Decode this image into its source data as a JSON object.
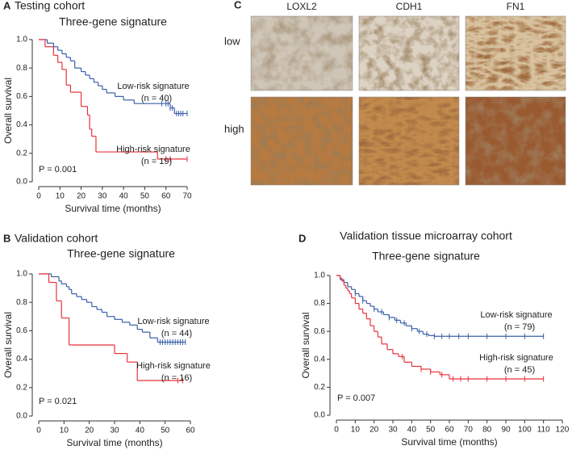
{
  "chart_data": [
    {
      "type": "km",
      "panel": "A",
      "title": "Testing cohort",
      "subtitle": "Three-gene signature",
      "xlabel": "Survival time (months)",
      "ylabel": "Overall survival",
      "p_text": "P = 0.001",
      "xlim": [
        0,
        70
      ],
      "xticks": [
        0,
        10,
        20,
        30,
        40,
        50,
        60,
        70
      ],
      "ylim": [
        0,
        1
      ],
      "yticks": [
        {
          "value": 0,
          "label": "0.0"
        },
        0.2,
        0.4,
        0.6,
        0.8,
        {
          "value": 1,
          "label": "1.0"
        }
      ],
      "series": [
        {
          "name": "Low-risk signature",
          "n_text": "(n = 40)",
          "color": "#3a5fa8",
          "x": [
            0,
            4,
            7,
            9,
            11,
            13,
            15,
            17,
            20,
            22,
            24,
            26,
            28,
            30,
            32,
            36,
            40,
            45,
            62,
            64
          ],
          "y": [
            1,
            0.975,
            0.95,
            0.925,
            0.9,
            0.875,
            0.85,
            0.8,
            0.775,
            0.75,
            0.725,
            0.7,
            0.675,
            0.65,
            0.625,
            0.6,
            0.575,
            0.55,
            0.52,
            0.48
          ],
          "censor_x": [
            58,
            60,
            61,
            62,
            63,
            65,
            66,
            67,
            68,
            70
          ]
        },
        {
          "name": "High-risk signature",
          "n_text": "(n = 19)",
          "color": "#e8323c",
          "x": [
            0,
            3,
            7,
            9,
            11,
            13,
            15,
            20,
            23,
            24,
            25,
            27,
            56
          ],
          "y": [
            1,
            0.95,
            0.89,
            0.84,
            0.79,
            0.68,
            0.63,
            0.53,
            0.47,
            0.37,
            0.32,
            0.21,
            0.16
          ],
          "censor_x": [
            60,
            62,
            70
          ]
        }
      ]
    },
    {
      "type": "km",
      "panel": "B",
      "title": "Validation cohort",
      "subtitle": "Three-gene signature",
      "xlabel": "Survival time (months)",
      "ylabel": "Overall survival",
      "p_text": "P = 0.021",
      "xlim": [
        0,
        60
      ],
      "xticks": [
        0,
        10,
        20,
        30,
        40,
        50,
        60
      ],
      "ylim": [
        0,
        1
      ],
      "yticks": [
        {
          "value": 0,
          "label": "0.0"
        },
        0.2,
        0.4,
        0.6,
        0.8,
        {
          "value": 1,
          "label": "1.0"
        }
      ],
      "series": [
        {
          "name": "Low-risk signature",
          "n_text": "(n = 44)",
          "color": "#3a5fa8",
          "x": [
            0,
            5,
            8,
            9,
            11,
            12,
            13,
            15,
            17,
            19,
            21,
            23,
            25,
            27,
            30,
            33,
            36,
            39,
            41,
            44,
            47
          ],
          "y": [
            1,
            0.98,
            0.95,
            0.93,
            0.91,
            0.89,
            0.86,
            0.84,
            0.82,
            0.8,
            0.77,
            0.75,
            0.73,
            0.7,
            0.68,
            0.66,
            0.64,
            0.61,
            0.59,
            0.55,
            0.52
          ],
          "censor_x": [
            48,
            49,
            50,
            51,
            52,
            53,
            54,
            55,
            56,
            57,
            58
          ]
        },
        {
          "name": "High-risk signature",
          "n_text": "(n = 16)",
          "color": "#e8323c",
          "x": [
            0,
            4,
            7,
            9,
            12,
            30,
            35,
            39
          ],
          "y": [
            1,
            0.94,
            0.81,
            0.69,
            0.5,
            0.44,
            0.38,
            0.25
          ],
          "censor_x": [
            55,
            57
          ]
        }
      ]
    },
    {
      "type": "km",
      "panel": "D",
      "title": "Validation tissue microarray cohort",
      "subtitle": "Three-gene signature",
      "xlabel": "Survival time (months)",
      "ylabel": "Overall survival",
      "p_text": "P = 0.007",
      "xlim": [
        0,
        120
      ],
      "xticks": [
        0,
        10,
        20,
        30,
        40,
        50,
        60,
        70,
        80,
        90,
        100,
        110,
        120
      ],
      "ylim": [
        0,
        1
      ],
      "yticks": [
        {
          "value": 0,
          "label": "0.0"
        },
        0.2,
        0.4,
        0.6,
        0.8,
        {
          "value": 1,
          "label": "1.0"
        }
      ],
      "series": [
        {
          "name": "Low-risk signature",
          "n_text": "(n = 79)",
          "color": "#3a5fa8",
          "x": [
            0,
            2,
            4,
            6,
            8,
            10,
            12,
            14,
            16,
            18,
            20,
            22,
            25,
            28,
            31,
            34,
            37,
            40,
            43,
            46,
            49,
            52
          ],
          "y": [
            1,
            0.97,
            0.95,
            0.92,
            0.9,
            0.87,
            0.85,
            0.82,
            0.8,
            0.78,
            0.76,
            0.74,
            0.72,
            0.7,
            0.68,
            0.66,
            0.64,
            0.62,
            0.6,
            0.58,
            0.57,
            0.565
          ],
          "censor_x": [
            10,
            14,
            20,
            24,
            28,
            32,
            36,
            40,
            44,
            48,
            52,
            56,
            60,
            65,
            70,
            80,
            90,
            100,
            110
          ]
        },
        {
          "name": "High-risk signature",
          "n_text": "(n = 45)",
          "color": "#e8323c",
          "x": [
            0,
            2,
            3,
            4,
            5,
            6,
            7,
            8,
            10,
            12,
            14,
            16,
            18,
            20,
            22,
            24,
            27,
            30,
            33,
            36,
            40,
            45,
            50,
            55,
            60
          ],
          "y": [
            1,
            0.98,
            0.96,
            0.93,
            0.91,
            0.89,
            0.87,
            0.84,
            0.8,
            0.76,
            0.73,
            0.69,
            0.64,
            0.6,
            0.56,
            0.51,
            0.47,
            0.44,
            0.42,
            0.38,
            0.35,
            0.33,
            0.31,
            0.29,
            0.26
          ],
          "censor_x": [
            35,
            45,
            50,
            56,
            62,
            66,
            70,
            80,
            90,
            100,
            110
          ]
        }
      ]
    }
  ],
  "ihc": {
    "panel": "C",
    "columns": [
      "LOXL2",
      "CDH1",
      "FN1"
    ],
    "rows": [
      "low",
      "high"
    ]
  }
}
